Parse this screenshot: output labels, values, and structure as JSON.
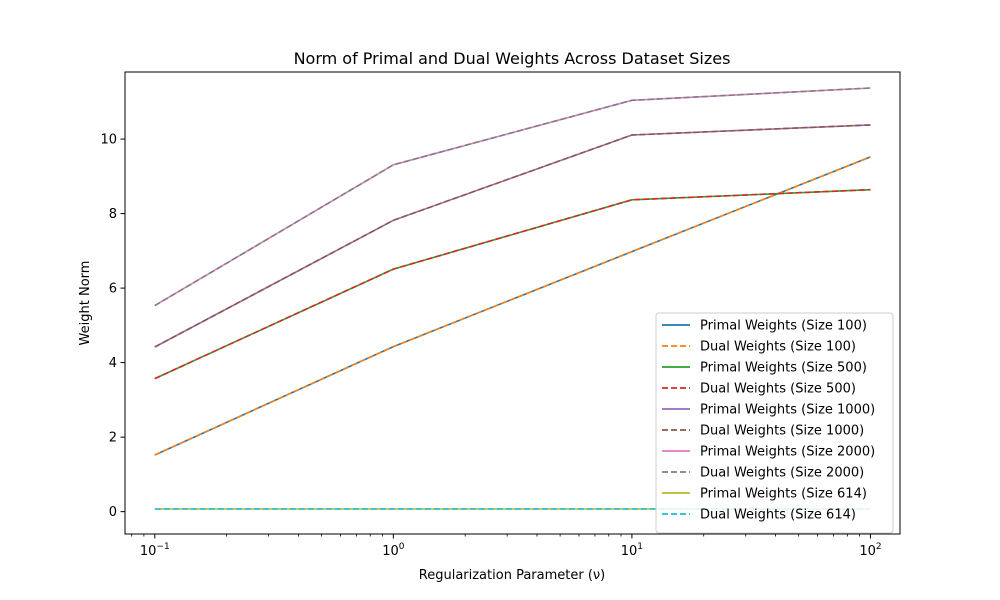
{
  "chart_data": {
    "type": "line",
    "title": "Norm of Primal and Dual Weights Across Dataset Sizes",
    "xlabel": "Regularization Parameter (ν)",
    "ylabel": "Weight Norm",
    "x_scale": "log",
    "x": [
      0.1,
      1,
      10,
      100
    ],
    "xlim": [
      0.075,
      133
    ],
    "ylim": [
      -0.6,
      11.8
    ],
    "x_ticks": [
      {
        "value": 0.1,
        "base": "10",
        "exp": "−1"
      },
      {
        "value": 1,
        "base": "10",
        "exp": "0"
      },
      {
        "value": 10,
        "base": "10",
        "exp": "1"
      },
      {
        "value": 100,
        "base": "10",
        "exp": "2"
      }
    ],
    "y_ticks": [
      {
        "value": 0,
        "label": "0"
      },
      {
        "value": 2,
        "label": "2"
      },
      {
        "value": 4,
        "label": "4"
      },
      {
        "value": 6,
        "label": "6"
      },
      {
        "value": 8,
        "label": "8"
      },
      {
        "value": 10,
        "label": "10"
      }
    ],
    "grid": false,
    "legend_position": "lower-right",
    "series": [
      {
        "name": "Primal Weights (Size 100)",
        "color": "#1f77b4",
        "dash": "solid",
        "values": [
          1.52,
          4.43,
          6.98,
          9.52
        ]
      },
      {
        "name": "Dual Weights (Size 100)",
        "color": "#ff7f0e",
        "dash": "dashed",
        "values": [
          1.52,
          4.43,
          6.98,
          9.52
        ]
      },
      {
        "name": "Primal Weights (Size 500)",
        "color": "#2ca02c",
        "dash": "solid",
        "values": [
          3.57,
          6.51,
          8.37,
          8.64
        ]
      },
      {
        "name": "Dual Weights (Size 500)",
        "color": "#d62728",
        "dash": "dashed",
        "values": [
          3.57,
          6.51,
          8.37,
          8.64
        ]
      },
      {
        "name": "Primal Weights (Size 1000)",
        "color": "#9467bd",
        "dash": "solid",
        "values": [
          4.42,
          7.82,
          10.11,
          10.38
        ]
      },
      {
        "name": "Dual Weights (Size 1000)",
        "color": "#8c564b",
        "dash": "dashed",
        "values": [
          4.42,
          7.82,
          10.11,
          10.38
        ]
      },
      {
        "name": "Primal Weights (Size 2000)",
        "color": "#e377c2",
        "dash": "solid",
        "values": [
          5.53,
          9.31,
          11.04,
          11.37
        ]
      },
      {
        "name": "Dual Weights (Size 2000)",
        "color": "#7f7f7f",
        "dash": "dashed",
        "values": [
          5.53,
          9.31,
          11.04,
          11.37
        ]
      },
      {
        "name": "Primal Weights (Size 614)",
        "color": "#bcbd22",
        "dash": "solid",
        "values": [
          0.07,
          0.07,
          0.07,
          0.07
        ]
      },
      {
        "name": "Dual Weights (Size 614)",
        "color": "#17becf",
        "dash": "dashed",
        "values": [
          0.07,
          0.07,
          0.07,
          0.07
        ]
      }
    ]
  }
}
